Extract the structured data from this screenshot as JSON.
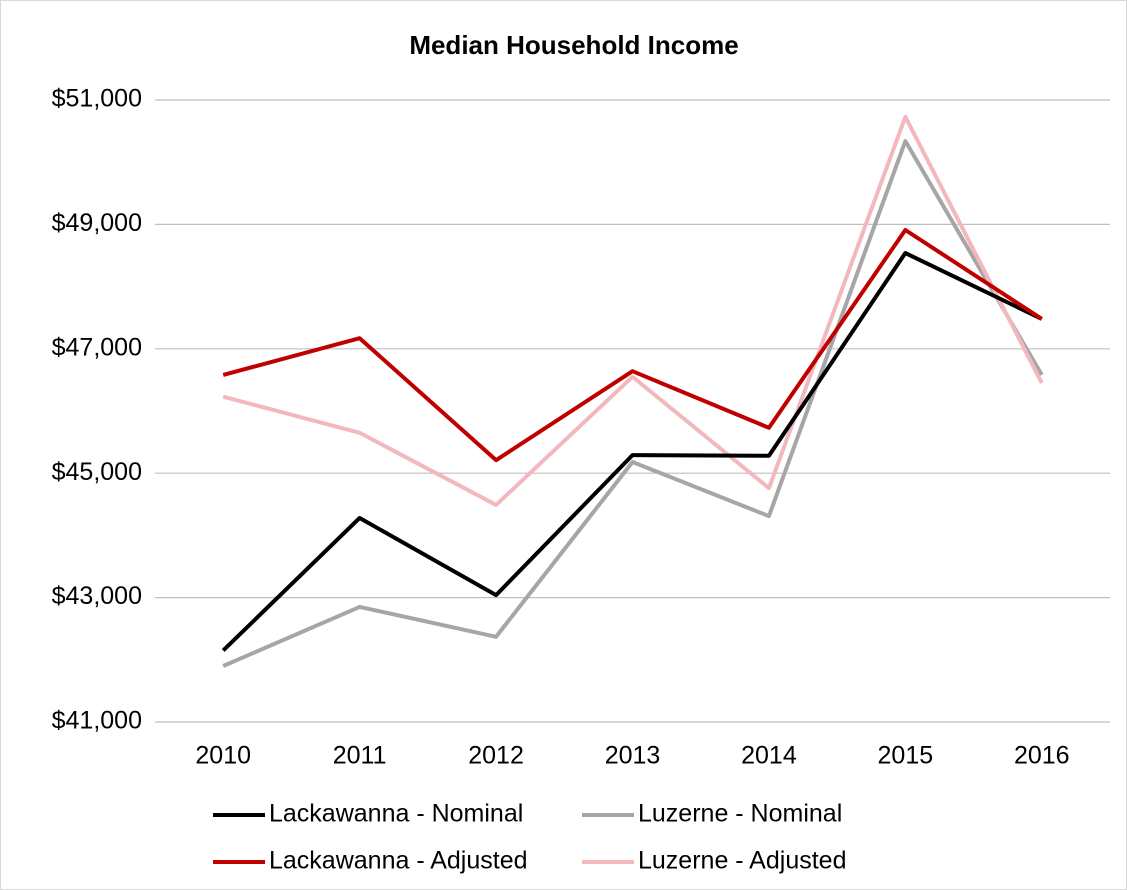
{
  "chart_data": {
    "type": "line",
    "title": "Median Household Income",
    "categories": [
      "2010",
      "2011",
      "2012",
      "2013",
      "2014",
      "2015",
      "2016"
    ],
    "series": [
      {
        "name": "Lackawanna - Nominal",
        "color": "#000000",
        "values": [
          42150,
          44280,
          43040,
          45290,
          45280,
          48540,
          47480
        ]
      },
      {
        "name": "Luzerne - Nominal",
        "color": "#a6a6a6",
        "values": [
          41900,
          42850,
          42370,
          45180,
          44310,
          50340,
          46580
        ]
      },
      {
        "name": "Lackawanna - Adjusted",
        "color": "#c00000",
        "values": [
          46580,
          47170,
          45210,
          46640,
          45730,
          48910,
          47480
        ]
      },
      {
        "name": "Luzerne - Adjusted",
        "color": "#f2b8bd",
        "values": [
          46230,
          45650,
          44490,
          46550,
          44760,
          50730,
          46450
        ]
      }
    ],
    "ylim": [
      41000,
      51000
    ],
    "yticks": [
      {
        "value": 41000,
        "label": "$41,000"
      },
      {
        "value": 43000,
        "label": "$43,000"
      },
      {
        "value": 45000,
        "label": "$45,000"
      },
      {
        "value": 47000,
        "label": "$47,000"
      },
      {
        "value": 49000,
        "label": "$49,000"
      },
      {
        "value": 51000,
        "label": "$51,000"
      }
    ],
    "grid": true,
    "legend": "bottom"
  }
}
